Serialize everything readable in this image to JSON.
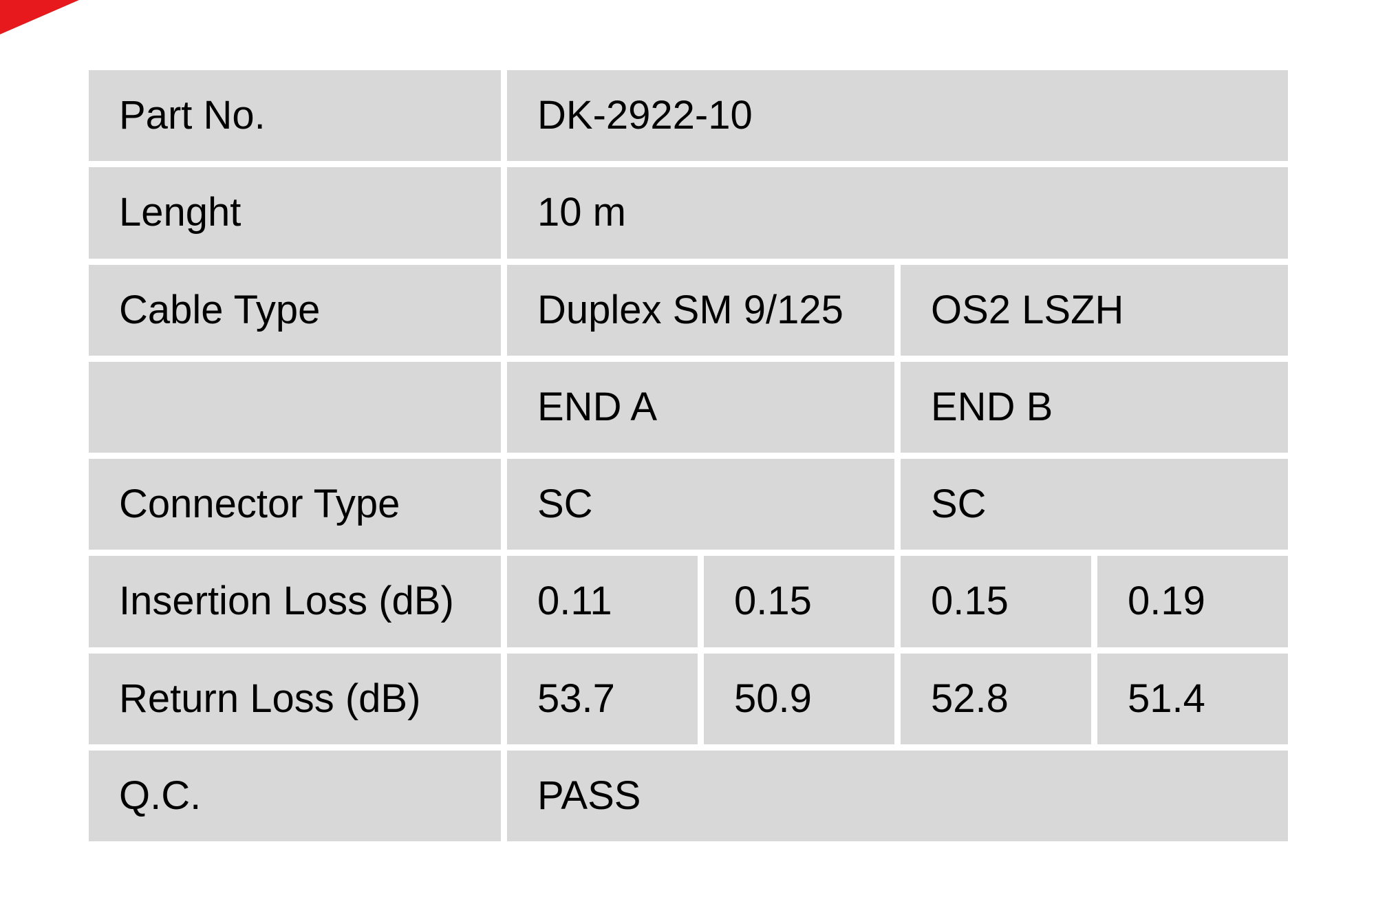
{
  "page": {
    "background": "#ffffff",
    "ribbon": {
      "color": "#e8191c"
    }
  },
  "table": {
    "cell_bg": "#d8d8d8",
    "text_color": "#000000",
    "rows": [
      {
        "label": "Part No.",
        "values": [
          "DK-2922-10"
        ]
      },
      {
        "label": "Lenght",
        "values": [
          "10 m"
        ]
      },
      {
        "label": "Cable Type",
        "values": [
          "Duplex SM 9/125",
          "OS2 LSZH"
        ]
      },
      {
        "label": "",
        "values": [
          "END A",
          "END B"
        ]
      },
      {
        "label": "Connector Type",
        "values": [
          "SC",
          "SC"
        ]
      },
      {
        "label": "Insertion Loss (dB)",
        "values": [
          "0.11",
          "0.15",
          "0.15",
          "0.19"
        ]
      },
      {
        "label": "Return Loss (dB)",
        "values": [
          "53.7",
          "50.9",
          "52.8",
          "51.4"
        ]
      },
      {
        "label": "Q.C.",
        "values": [
          "PASS"
        ]
      }
    ]
  }
}
